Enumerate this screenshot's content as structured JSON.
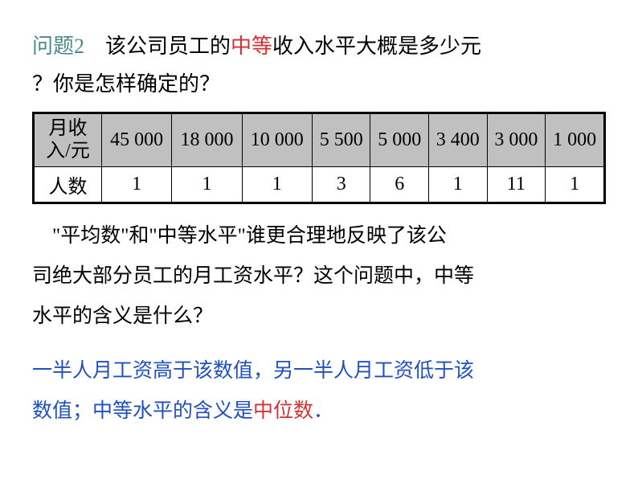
{
  "question": {
    "label": "问题2",
    "prefix": "　该公司员工的",
    "highlight": "中等",
    "suffix_line1": "收入水平大概是多少元",
    "line2": "？你是怎样确定的？"
  },
  "table": {
    "header_label": "月收入/元",
    "row_label": "人数",
    "columns": [
      {
        "income": "45 000",
        "count": "1"
      },
      {
        "income": "18 000",
        "count": "1"
      },
      {
        "income": "10 000",
        "count": "1"
      },
      {
        "income": "5 500",
        "count": "3"
      },
      {
        "income": "5 000",
        "count": "6"
      },
      {
        "income": "3 400",
        "count": "1"
      },
      {
        "income": "3 000",
        "count": "11"
      },
      {
        "income": "1 000",
        "count": "1"
      }
    ]
  },
  "body": {
    "line1": "　\"平均数\"和\"中等水平\"谁更合理地反映了该公",
    "line2": "司绝大部分员工的月工资水平？这个问题中，中等",
    "line3": "水平的含义是什么？"
  },
  "answer": {
    "blue_part1": "一半人月工资高于该数值，另一半人月工资低于该",
    "blue_part2_prefix": "数值；中等水平的含义是",
    "red_part": "中位数",
    "period": "．"
  },
  "styling": {
    "question_label_color": "#4a8a8a",
    "highlight_color": "#d63030",
    "answer_blue_color": "#2050c0",
    "table_header_bg": "#c0c0c0",
    "table_border_color": "#000000",
    "body_fontsize": 25,
    "table_fontsize": 24
  }
}
